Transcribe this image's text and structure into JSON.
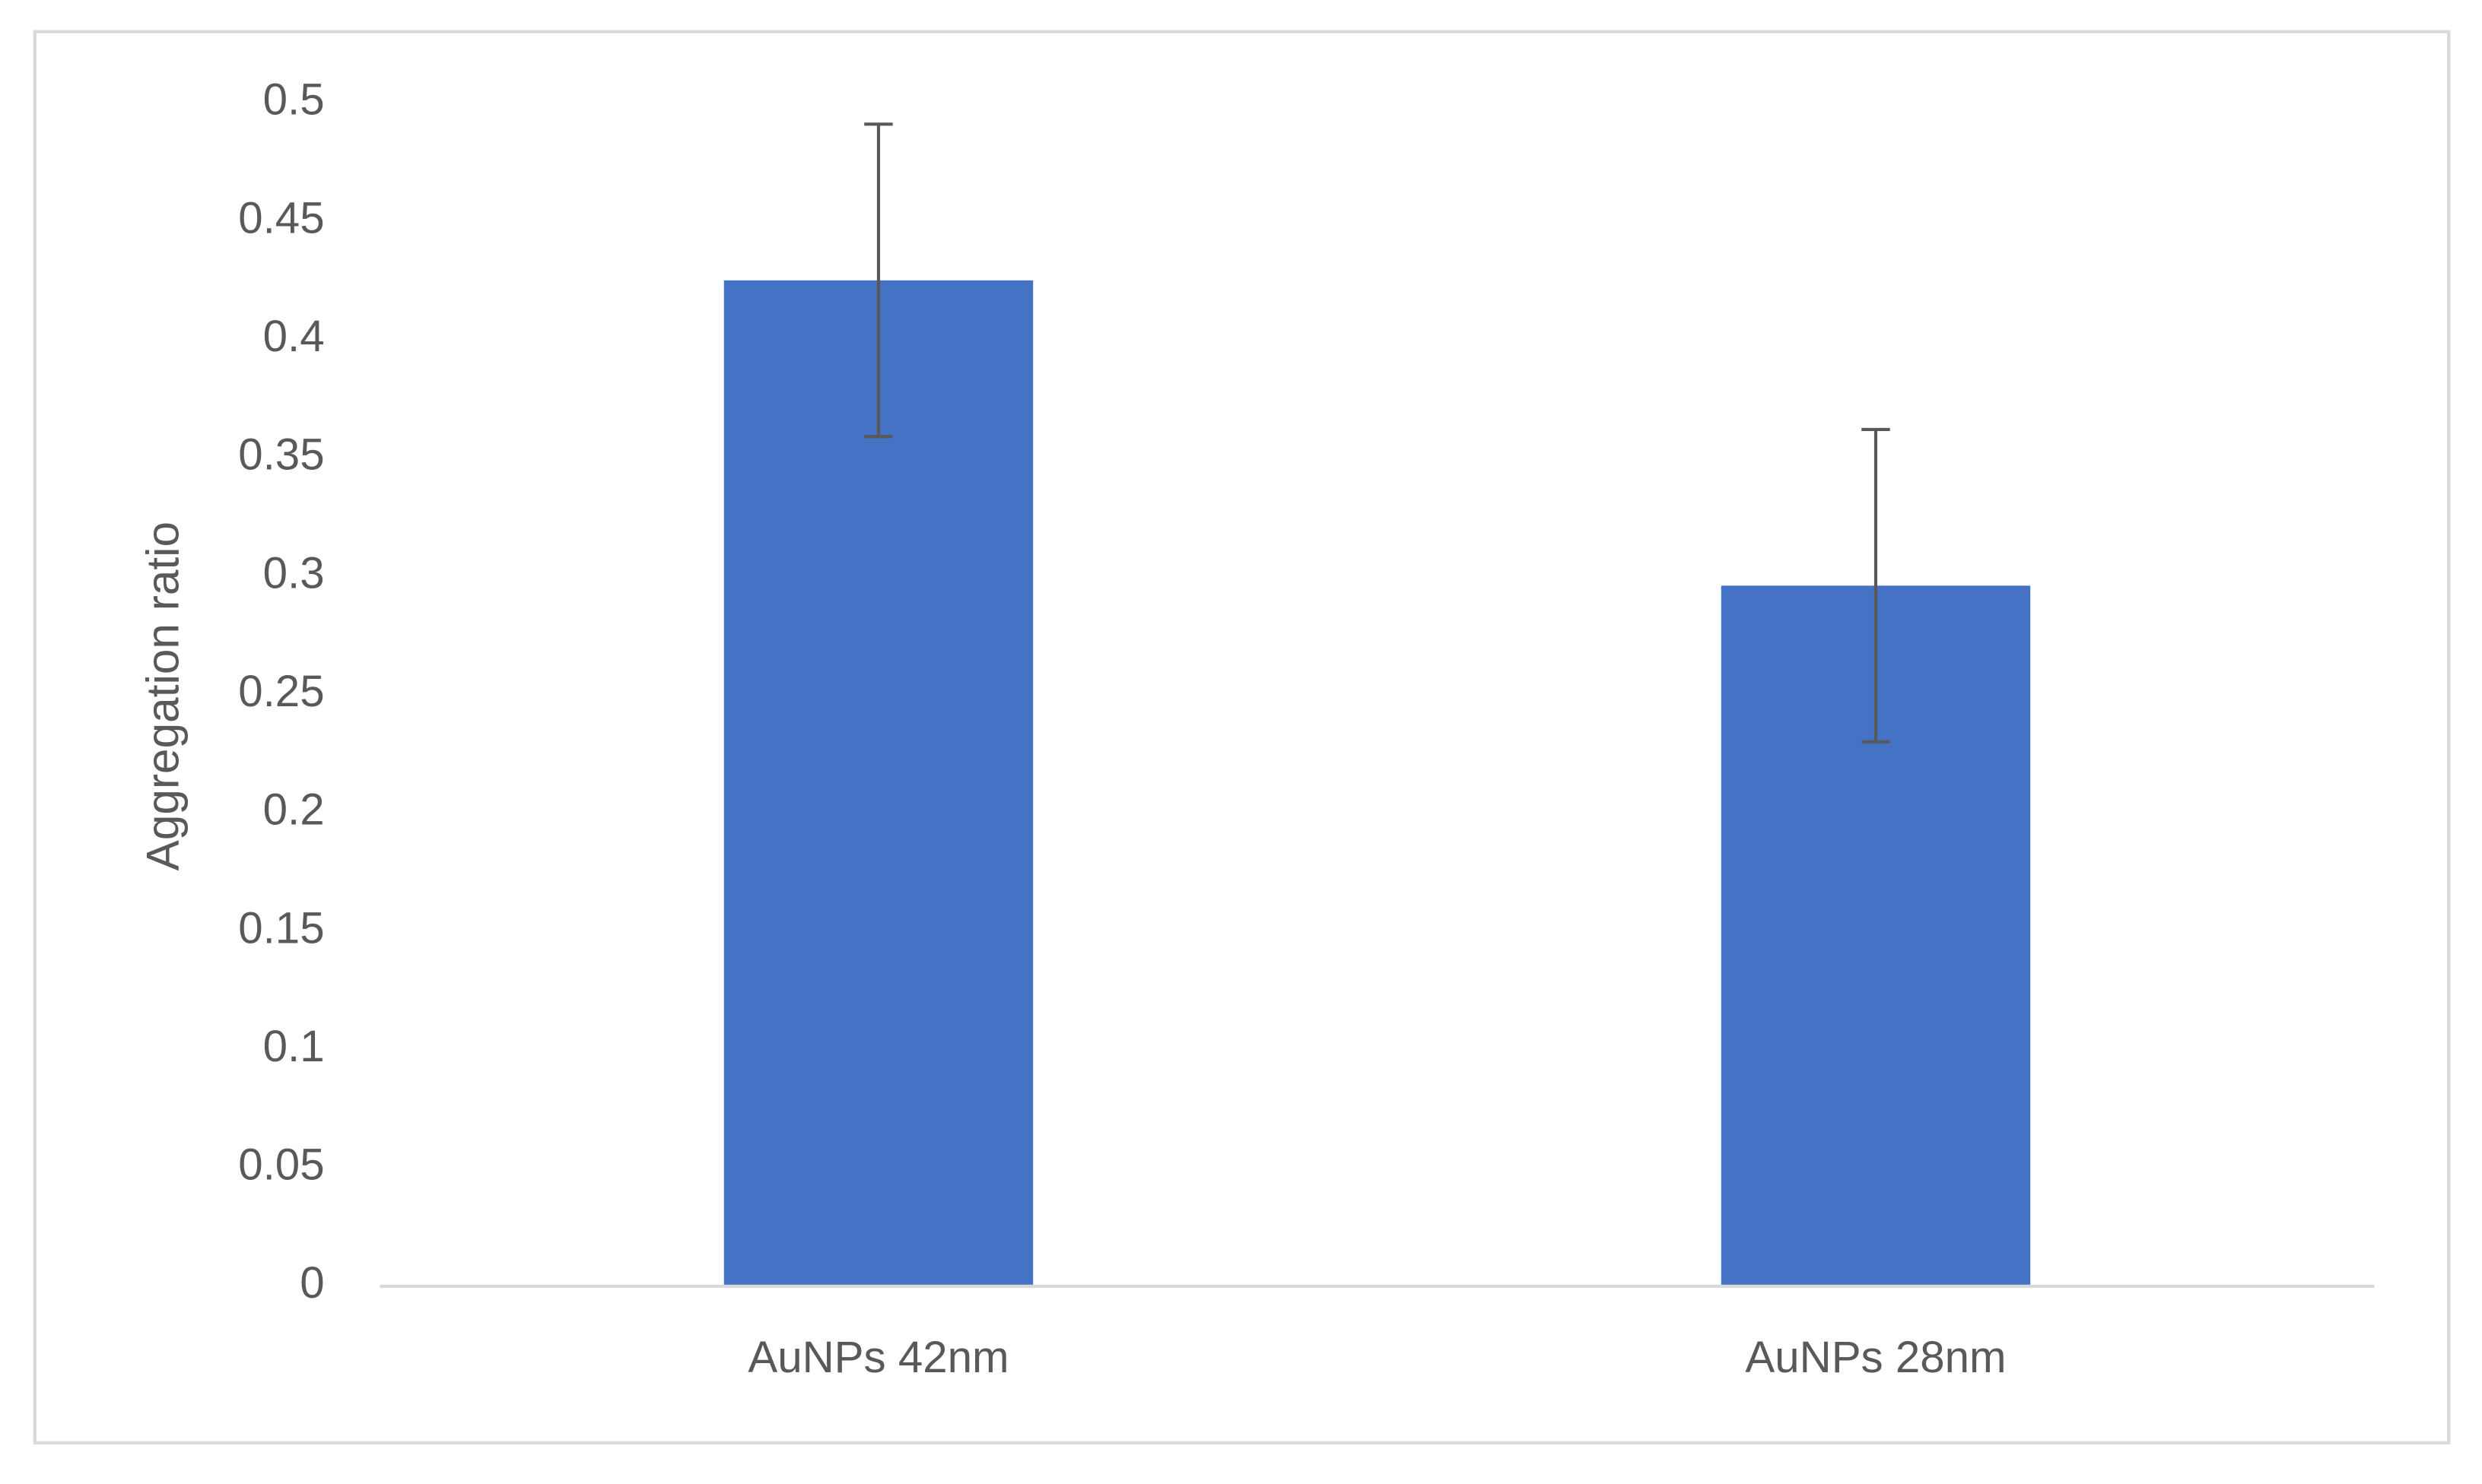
{
  "chart_data": {
    "type": "bar",
    "y_label": "Aggregation ratio",
    "categories": [
      "AuNPs 42nm",
      "AuNPs 28nm"
    ],
    "values": [
      0.425,
      0.296
    ],
    "errors": [
      0.066,
      0.066
    ],
    "color": "#4472c4",
    "error_color": "#595959",
    "ylim": [
      0,
      0.5
    ],
    "yticks": [
      0,
      0.05,
      0.1,
      0.15,
      0.2,
      0.25,
      0.3,
      0.35,
      0.4,
      0.45,
      0.5
    ],
    "grid": false
  }
}
